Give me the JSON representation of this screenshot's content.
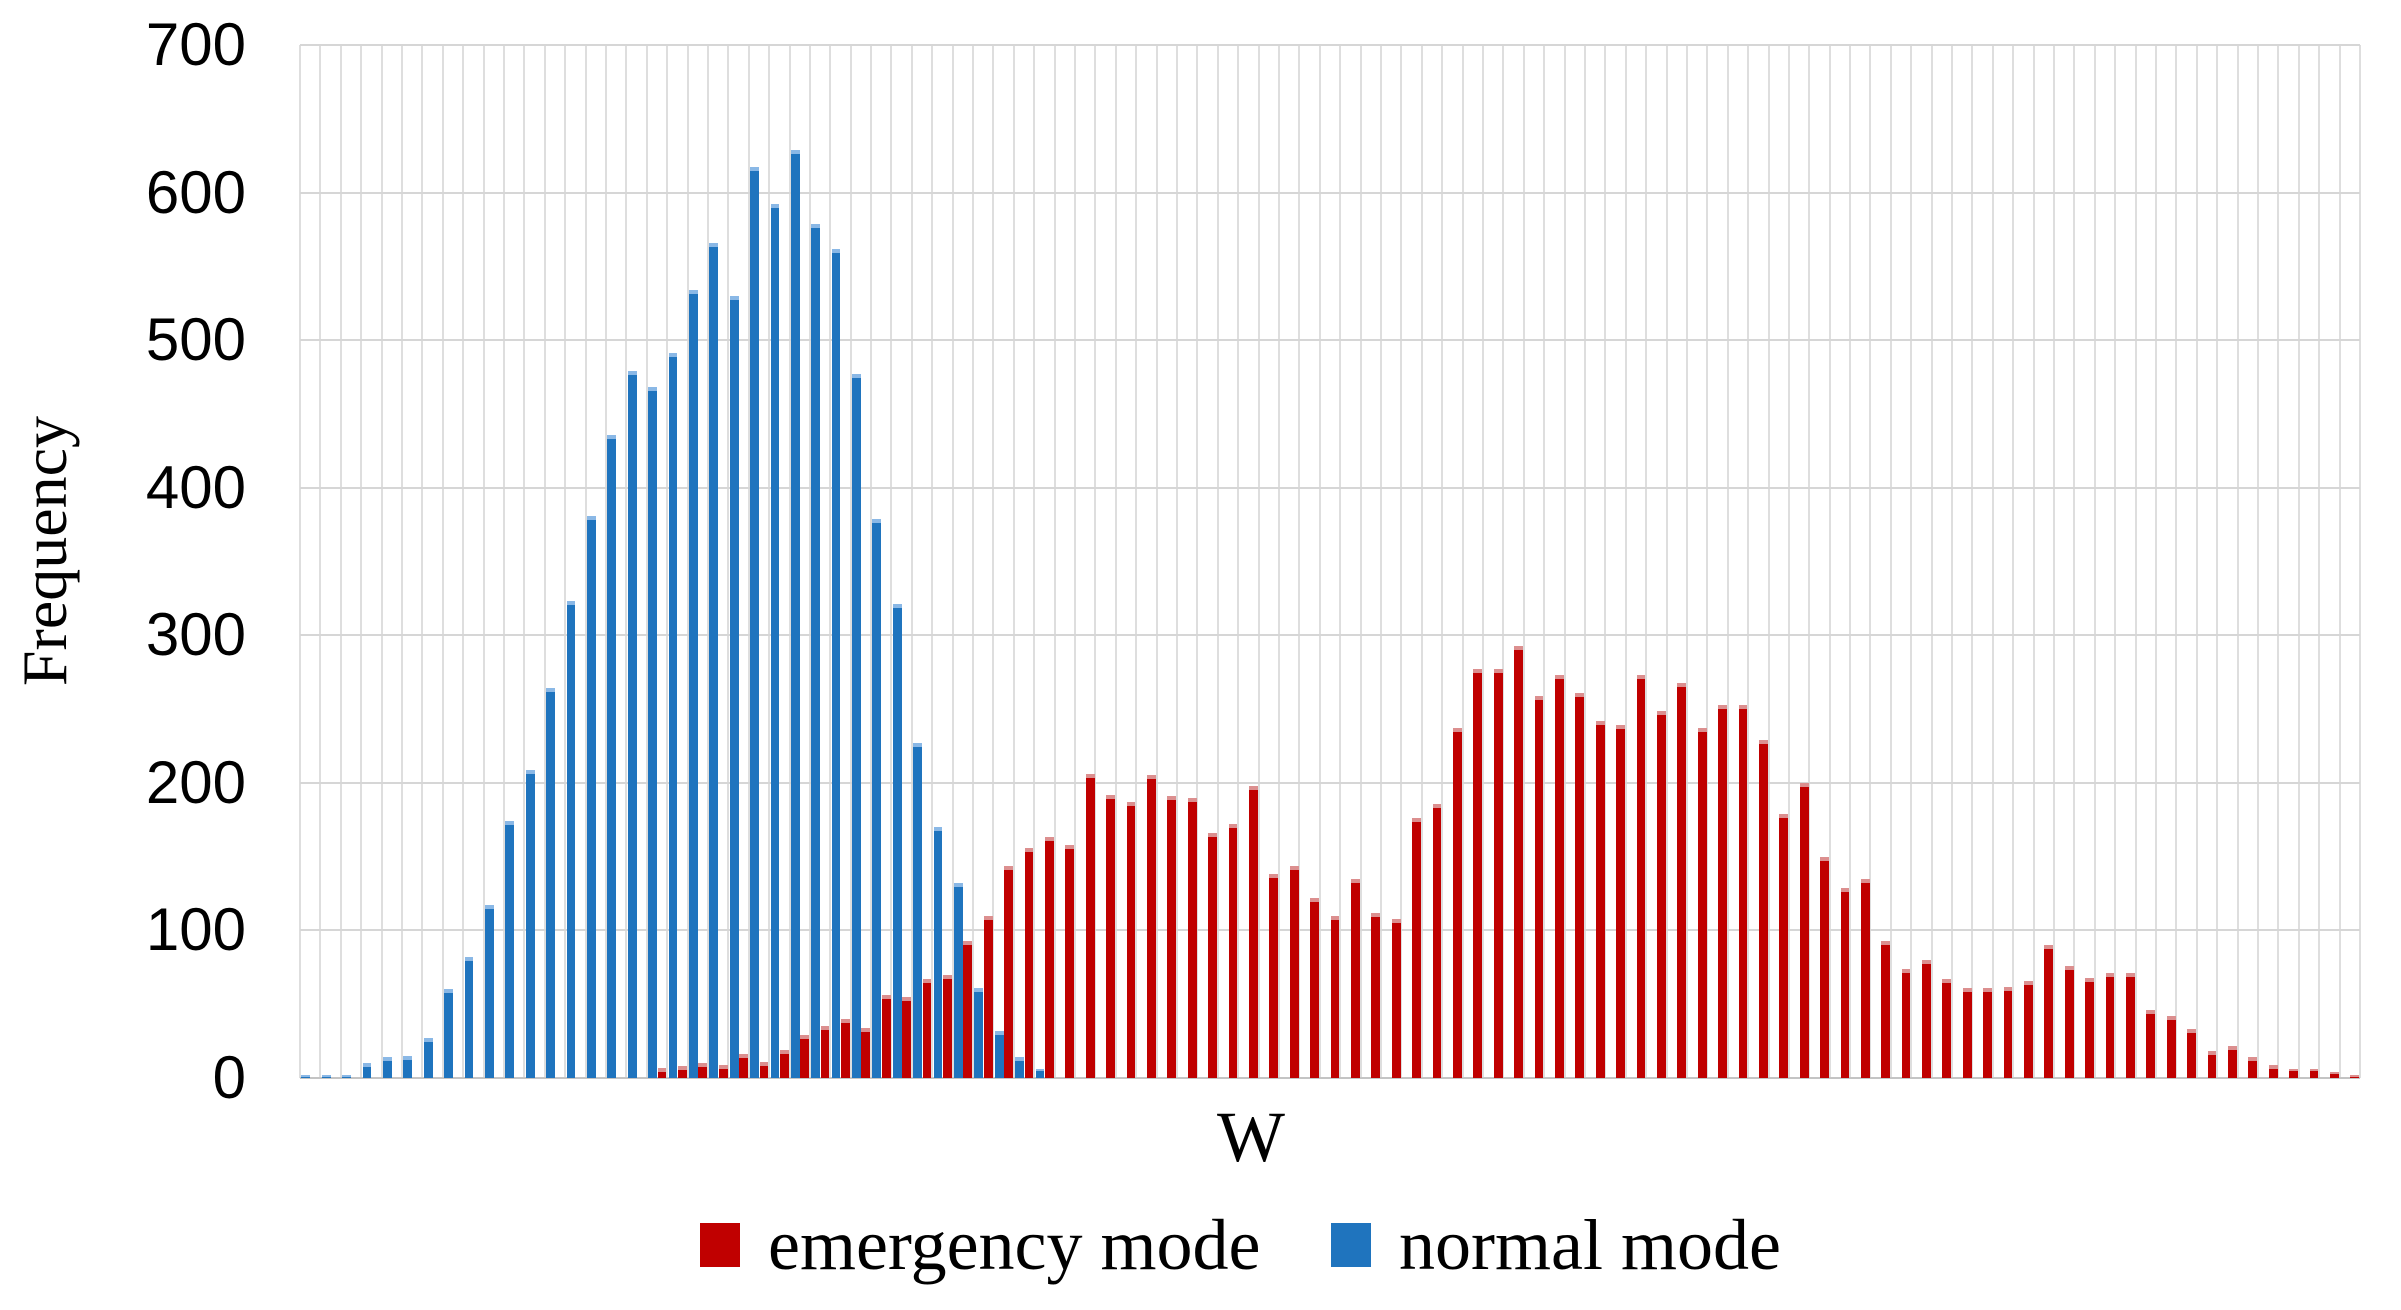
{
  "axes": {
    "x_label": "W",
    "y_label": "Frequency"
  },
  "legend": {
    "items": [
      {
        "label": "emergency mode",
        "color": "#c00000"
      },
      {
        "label": "normal mode",
        "color": "#1f74be"
      }
    ]
  },
  "chart_data": {
    "type": "bar",
    "subtype": "clustered-histogram",
    "title": "",
    "xlabel": "W",
    "ylabel": "Frequency",
    "ylim": [
      0,
      700
    ],
    "yticks": [
      0,
      100,
      200,
      300,
      400,
      500,
      600,
      700
    ],
    "grid": "both",
    "legend_position": "bottom",
    "n_bins": 101,
    "x_tick_labels_shown": false,
    "series": [
      {
        "name": "normal mode",
        "color": "#1f74be",
        "values": [
          2,
          2,
          2,
          10,
          14,
          15,
          27,
          60,
          82,
          117,
          174,
          209,
          264,
          323,
          381,
          436,
          479,
          468,
          491,
          534,
          566,
          530,
          617,
          592,
          629,
          579,
          562,
          477,
          379,
          321,
          227,
          170,
          132,
          61,
          32,
          14,
          6,
          0,
          0,
          0,
          0,
          0,
          0,
          0,
          0,
          0,
          0,
          0,
          0,
          0,
          0,
          0,
          0,
          0,
          0,
          0,
          0,
          0,
          0,
          0,
          0,
          0,
          0,
          0,
          0,
          0,
          0,
          0,
          0,
          0,
          0,
          0,
          0,
          0,
          0,
          0,
          0,
          0,
          0,
          0,
          0,
          0,
          0,
          0,
          0,
          0,
          0,
          0,
          0,
          0,
          0,
          0,
          0,
          0,
          0,
          0,
          0,
          0,
          0,
          0,
          0
        ]
      },
      {
        "name": "emergency mode",
        "color": "#c00000",
        "values": [
          0,
          0,
          0,
          0,
          0,
          0,
          0,
          0,
          0,
          0,
          0,
          0,
          0,
          0,
          0,
          0,
          0,
          7,
          8,
          10,
          9,
          16,
          11,
          19,
          29,
          35,
          40,
          34,
          56,
          55,
          67,
          70,
          93,
          110,
          144,
          156,
          163,
          158,
          206,
          192,
          187,
          205,
          191,
          190,
          166,
          172,
          198,
          138,
          144,
          122,
          110,
          135,
          112,
          108,
          176,
          186,
          237,
          277,
          277,
          293,
          259,
          273,
          261,
          242,
          239,
          273,
          249,
          268,
          237,
          253,
          253,
          229,
          179,
          200,
          150,
          129,
          135,
          93,
          74,
          80,
          67,
          61,
          61,
          62,
          66,
          90,
          76,
          68,
          71,
          71,
          46,
          42,
          33,
          18,
          22,
          14,
          9,
          6,
          6,
          4,
          2
        ]
      }
    ]
  }
}
